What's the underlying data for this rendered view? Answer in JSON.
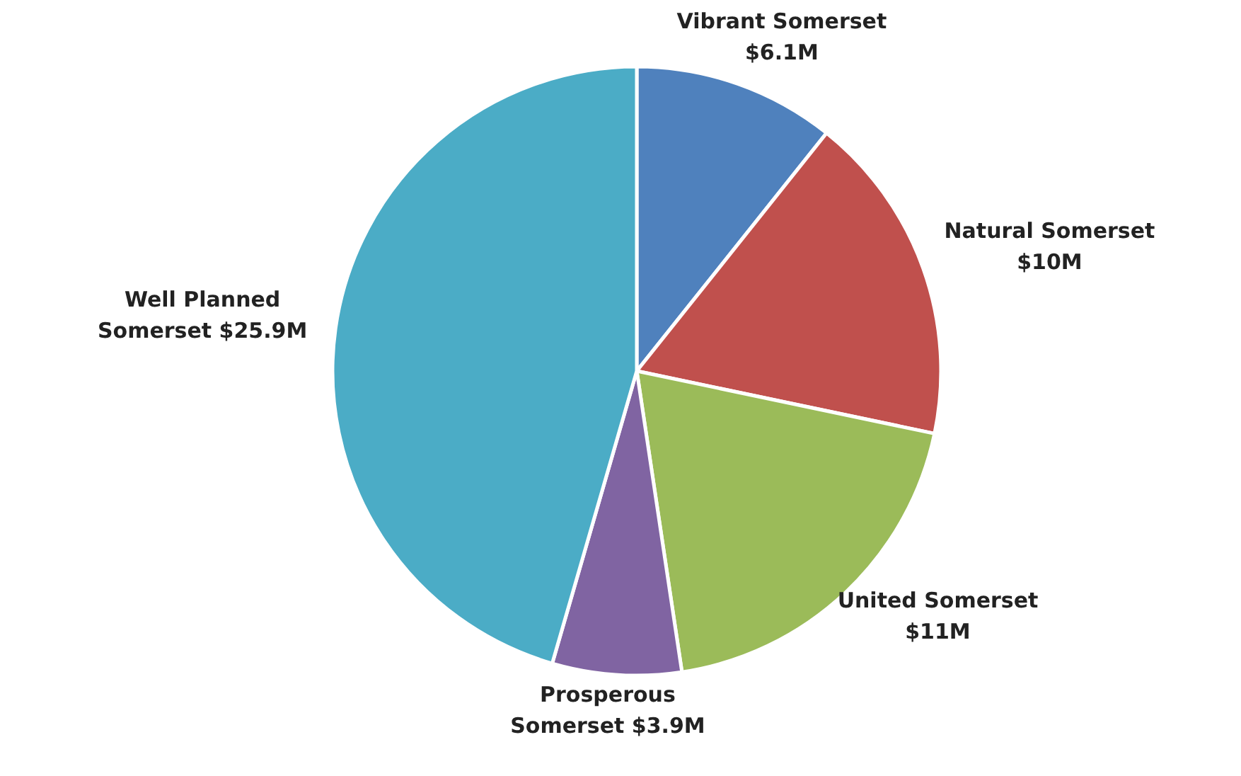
{
  "chart_data": {
    "type": "pie",
    "categories": [
      "Vibrant Somerset",
      "Natural Somerset",
      "United Somerset",
      "Prosperous Somerset",
      "Well Planned Somerset"
    ],
    "values": [
      6.1,
      10,
      11,
      3.9,
      25.9
    ],
    "value_labels": [
      "$6.1M",
      "$10M",
      "$11M",
      "$3.9M",
      "$25.9M"
    ],
    "colors": [
      "#4f81bd",
      "#c0504d",
      "#9bbb59",
      "#8064a2",
      "#4bacc6"
    ]
  }
}
